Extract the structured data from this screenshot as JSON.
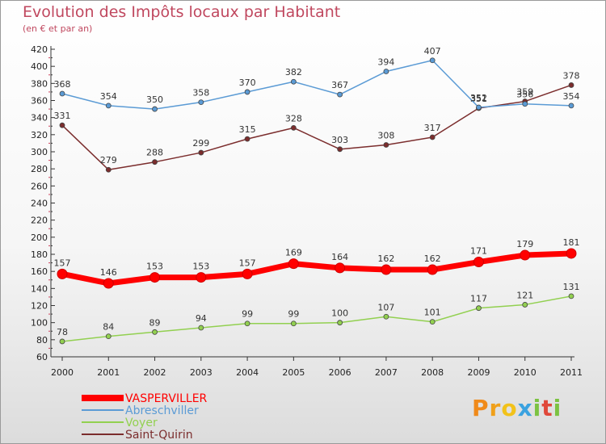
{
  "title": "Evolution des Impôts locaux par Habitant",
  "subtitle": "(en € et par an)",
  "brand": {
    "letters": [
      {
        "ch": "P",
        "color": "#f08a1a"
      },
      {
        "ch": "r",
        "color": "#f0a01a"
      },
      {
        "ch": "o",
        "color": "#f2c21a"
      },
      {
        "ch": "x",
        "color": "#3aa2e0"
      },
      {
        "ch": "i",
        "color": "#7cc242"
      },
      {
        "ch": "t",
        "color": "#e0483a"
      },
      {
        "ch": "i",
        "color": "#7cc242"
      }
    ]
  },
  "chart_data": {
    "type": "line",
    "x": [
      "2000",
      "2001",
      "2002",
      "2003",
      "2004",
      "2005",
      "2006",
      "2007",
      "2008",
      "2009",
      "2010",
      "2011"
    ],
    "ylim": [
      60,
      420
    ],
    "yticks": [
      60,
      80,
      100,
      120,
      140,
      160,
      180,
      200,
      220,
      240,
      260,
      280,
      300,
      320,
      340,
      360,
      380,
      400,
      420
    ],
    "grid": false,
    "legend_position": "bottom-left",
    "series": [
      {
        "name": "VASPERVILLER",
        "color": "#ff0000",
        "values": [
          157,
          146,
          153,
          153,
          157,
          169,
          164,
          162,
          162,
          171,
          179,
          181
        ]
      },
      {
        "name": "Abreschviller",
        "color": "#5b9bd5",
        "values": [
          368,
          354,
          350,
          358,
          370,
          382,
          367,
          394,
          407,
          352,
          356,
          354
        ]
      },
      {
        "name": "Voyer",
        "color": "#92d050",
        "values": [
          78,
          84,
          89,
          94,
          99,
          99,
          100,
          107,
          101,
          117,
          121,
          131
        ]
      },
      {
        "name": "Saint-Quirin",
        "color": "#7b2d2d",
        "values": [
          331,
          279,
          288,
          299,
          315,
          328,
          303,
          308,
          317,
          351,
          359,
          378
        ]
      }
    ]
  }
}
